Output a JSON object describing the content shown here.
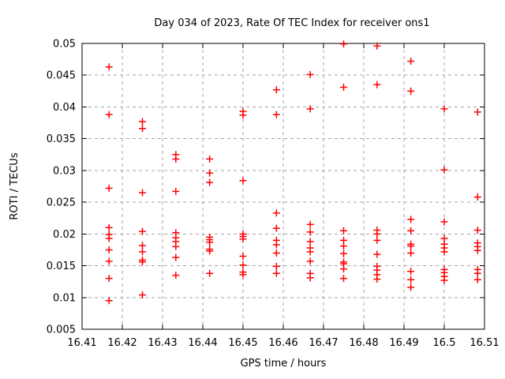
{
  "chart_data": {
    "type": "scatter",
    "title": "Day 034 of 2023, Rate Of TEC Index for receiver ons1",
    "xlabel": "GPS time / hours",
    "ylabel": "ROTI / TECUs",
    "xlim": [
      16.41,
      16.51
    ],
    "ylim": [
      0.005,
      0.05
    ],
    "xticks": {
      "values": [
        16.41,
        16.42,
        16.43,
        16.44,
        16.45,
        16.46,
        16.47,
        16.48,
        16.49,
        16.5,
        16.51
      ],
      "labels": [
        "16.41",
        "16.42",
        "16.43",
        "16.44",
        "16.45",
        "16.46",
        "16.47",
        "16.48",
        "16.49",
        "16.5",
        "16.51"
      ]
    },
    "yticks": {
      "values": [
        0.005,
        0.01,
        0.015,
        0.02,
        0.025,
        0.03,
        0.035,
        0.04,
        0.045,
        0.05
      ],
      "labels": [
        "0.005",
        "0.01",
        "0.015",
        "0.02",
        "0.025",
        "0.03",
        "0.035",
        "0.04",
        "0.045",
        "0.05"
      ]
    },
    "grid": {
      "visible": true,
      "color": "#a6a6a6",
      "dash": "4 4"
    },
    "border_color": "#000000",
    "background": "#ffffff",
    "text_color": "#000000",
    "legend_position": "none",
    "series": [
      {
        "name": "ROTI",
        "marker": "plus",
        "color": "#ff0000",
        "points": [
          [
            16.4167,
            0.0463
          ],
          [
            16.4167,
            0.0388
          ],
          [
            16.4167,
            0.0272
          ],
          [
            16.4167,
            0.021
          ],
          [
            16.4167,
            0.0199
          ],
          [
            16.4167,
            0.0193
          ],
          [
            16.4167,
            0.0175
          ],
          [
            16.4167,
            0.0157
          ],
          [
            16.4167,
            0.013
          ],
          [
            16.4167,
            0.0095
          ],
          [
            16.425,
            0.0377
          ],
          [
            16.425,
            0.0366
          ],
          [
            16.425,
            0.0265
          ],
          [
            16.425,
            0.0204
          ],
          [
            16.425,
            0.0182
          ],
          [
            16.425,
            0.0172
          ],
          [
            16.425,
            0.0159
          ],
          [
            16.425,
            0.0156
          ],
          [
            16.425,
            0.0104
          ],
          [
            16.4333,
            0.0325
          ],
          [
            16.4333,
            0.0318
          ],
          [
            16.4333,
            0.0267
          ],
          [
            16.4333,
            0.0202
          ],
          [
            16.4333,
            0.0194
          ],
          [
            16.4333,
            0.0188
          ],
          [
            16.4333,
            0.018
          ],
          [
            16.4333,
            0.0163
          ],
          [
            16.4333,
            0.0135
          ],
          [
            16.4417,
            0.0318
          ],
          [
            16.4417,
            0.0296
          ],
          [
            16.4417,
            0.0281
          ],
          [
            16.4417,
            0.0195
          ],
          [
            16.4417,
            0.0191
          ],
          [
            16.4417,
            0.0187
          ],
          [
            16.4417,
            0.0176
          ],
          [
            16.4417,
            0.0173
          ],
          [
            16.4417,
            0.0138
          ],
          [
            16.45,
            0.0393
          ],
          [
            16.45,
            0.0387
          ],
          [
            16.45,
            0.0284
          ],
          [
            16.45,
            0.02
          ],
          [
            16.45,
            0.0196
          ],
          [
            16.45,
            0.0192
          ],
          [
            16.45,
            0.0165
          ],
          [
            16.45,
            0.0151
          ],
          [
            16.45,
            0.014
          ],
          [
            16.45,
            0.0136
          ],
          [
            16.4583,
            0.0427
          ],
          [
            16.4583,
            0.0388
          ],
          [
            16.4583,
            0.0233
          ],
          [
            16.4583,
            0.0209
          ],
          [
            16.4583,
            0.019
          ],
          [
            16.4583,
            0.0183
          ],
          [
            16.4583,
            0.017
          ],
          [
            16.4583,
            0.0149
          ],
          [
            16.4583,
            0.0138
          ],
          [
            16.4667,
            0.0451
          ],
          [
            16.4667,
            0.0397
          ],
          [
            16.4667,
            0.0215
          ],
          [
            16.4667,
            0.0203
          ],
          [
            16.4667,
            0.0188
          ],
          [
            16.4667,
            0.0178
          ],
          [
            16.4667,
            0.0172
          ],
          [
            16.4667,
            0.0157
          ],
          [
            16.4667,
            0.0138
          ],
          [
            16.4667,
            0.0131
          ],
          [
            16.475,
            0.0499
          ],
          [
            16.475,
            0.0431
          ],
          [
            16.475,
            0.0205
          ],
          [
            16.475,
            0.019
          ],
          [
            16.475,
            0.0181
          ],
          [
            16.475,
            0.0169
          ],
          [
            16.475,
            0.0156
          ],
          [
            16.475,
            0.0153
          ],
          [
            16.475,
            0.0145
          ],
          [
            16.475,
            0.013
          ],
          [
            16.4833,
            0.0496
          ],
          [
            16.4833,
            0.0435
          ],
          [
            16.4833,
            0.0206
          ],
          [
            16.4833,
            0.02
          ],
          [
            16.4833,
            0.019
          ],
          [
            16.4833,
            0.0168
          ],
          [
            16.4833,
            0.0149
          ],
          [
            16.4833,
            0.0143
          ],
          [
            16.4833,
            0.0136
          ],
          [
            16.4833,
            0.0129
          ],
          [
            16.4917,
            0.0472
          ],
          [
            16.4917,
            0.0425
          ],
          [
            16.4917,
            0.0223
          ],
          [
            16.4917,
            0.0205
          ],
          [
            16.4917,
            0.0184
          ],
          [
            16.4917,
            0.0181
          ],
          [
            16.4917,
            0.017
          ],
          [
            16.4917,
            0.0141
          ],
          [
            16.4917,
            0.0128
          ],
          [
            16.4917,
            0.0116
          ],
          [
            16.5,
            0.0397
          ],
          [
            16.5,
            0.0301
          ],
          [
            16.5,
            0.0219
          ],
          [
            16.5,
            0.0193
          ],
          [
            16.5,
            0.0184
          ],
          [
            16.5,
            0.0178
          ],
          [
            16.5,
            0.0172
          ],
          [
            16.5,
            0.0144
          ],
          [
            16.5,
            0.0139
          ],
          [
            16.5,
            0.0133
          ],
          [
            16.5,
            0.0127
          ],
          [
            16.5083,
            0.0392
          ],
          [
            16.5083,
            0.0258
          ],
          [
            16.5083,
            0.0206
          ],
          [
            16.5083,
            0.0186
          ],
          [
            16.5083,
            0.018
          ],
          [
            16.5083,
            0.0174
          ],
          [
            16.5083,
            0.0144
          ],
          [
            16.5083,
            0.0138
          ],
          [
            16.5083,
            0.0128
          ]
        ]
      }
    ]
  }
}
